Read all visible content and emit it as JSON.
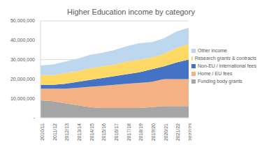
{
  "chart_data": {
    "type": "area",
    "title": "Higher Education income by category",
    "stacked": true,
    "grid": true,
    "legend": "right",
    "categories": [
      "2010/11",
      "2011/12",
      "2012/13",
      "2013/14",
      "2014/15",
      "2015/16",
      "2016/17",
      "2017/18",
      "2018/19",
      "2019/20",
      "2020/21",
      "2021/22",
      "2022/23"
    ],
    "series": [
      {
        "name": "Funding body grants",
        "color": "#a5a5a5",
        "values": [
          9000000,
          8500000,
          7500000,
          6500000,
          5500000,
          5000000,
          5000000,
          5000000,
          5000000,
          5500000,
          6000000,
          6000000,
          6000000
        ]
      },
      {
        "name": "Home / EU fees",
        "color": "#f4b183",
        "values": [
          6000000,
          6500000,
          7500000,
          9000000,
          10500000,
          11500000,
          12000000,
          12500000,
          13000000,
          13000000,
          14000000,
          14000000,
          14000000
        ]
      },
      {
        "name": "Non-EU / international fees",
        "color": "#4472c4",
        "values": [
          2000000,
          2000000,
          2500000,
          3000000,
          3500000,
          4000000,
          4500000,
          5000000,
          5500000,
          6500000,
          6500000,
          8500000,
          10000000
        ]
      },
      {
        "name": "Research grants & contracts",
        "color": "#ffd966",
        "values": [
          5000000,
          5000000,
          5500000,
          5500000,
          6000000,
          6000000,
          6000000,
          6500000,
          6500000,
          6000000,
          6500000,
          7500000,
          8000000
        ]
      },
      {
        "name": "Other income",
        "color": "#bdd7ee",
        "values": [
          5000000,
          5500000,
          6000000,
          6500000,
          7000000,
          7000000,
          7500000,
          8000000,
          8500000,
          8000000,
          8000000,
          8500000,
          8500000
        ]
      }
    ],
    "ylim": [
      0,
      50000000
    ],
    "yticks": [
      {
        "value": 0,
        "label": "-"
      },
      {
        "value": 10000000,
        "label": "10,000,000"
      },
      {
        "value": 20000000,
        "label": "20,000,000"
      },
      {
        "value": 30000000,
        "label": "30,000,000"
      },
      {
        "value": 40000000,
        "label": "40,000,000"
      },
      {
        "value": 50000000,
        "label": "50,000,000"
      }
    ]
  }
}
